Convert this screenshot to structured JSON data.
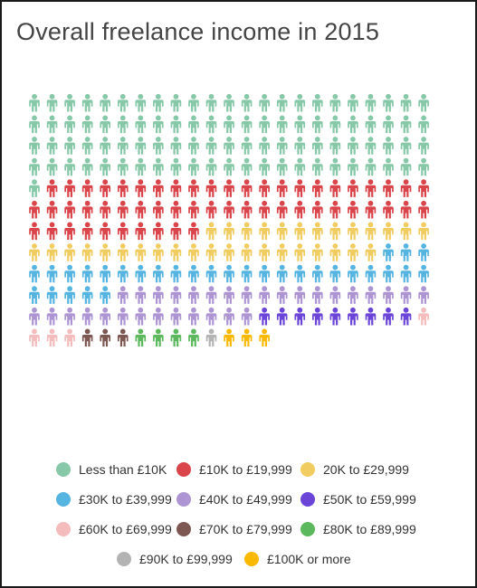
{
  "chart_data": {
    "type": "pictogram",
    "title": "Overall freelance income in 2015",
    "unit": "person icon",
    "total_icons": 276,
    "columns": 23,
    "series": [
      {
        "name": "Less than £10K",
        "count": 93,
        "color": "#86c8a8"
      },
      {
        "name": "£10K to £19,999",
        "count": 55,
        "color": "#d9454a"
      },
      {
        "name": "20K to £29,999",
        "count": 33,
        "color": "#f0cc61"
      },
      {
        "name": "£30K to £39,999",
        "count": 31,
        "color": "#56b4e0"
      },
      {
        "name": "£40K to £49,999",
        "count": 31,
        "color": "#ad95d4"
      },
      {
        "name": "£50K to £59,999",
        "count": 9,
        "color": "#6a45d8"
      },
      {
        "name": "£60K to £69,999",
        "count": 4,
        "color": "#f4bcbc"
      },
      {
        "name": "£70K to £79,999",
        "count": 3,
        "color": "#7d5752"
      },
      {
        "name": "£80K to £89,999",
        "count": 4,
        "color": "#5cb85c"
      },
      {
        "name": "£90K to £99,999",
        "count": 1,
        "color": "#b3b3b3"
      },
      {
        "name": "£100K or more",
        "count": 3,
        "color": "#f9b902"
      }
    ]
  }
}
